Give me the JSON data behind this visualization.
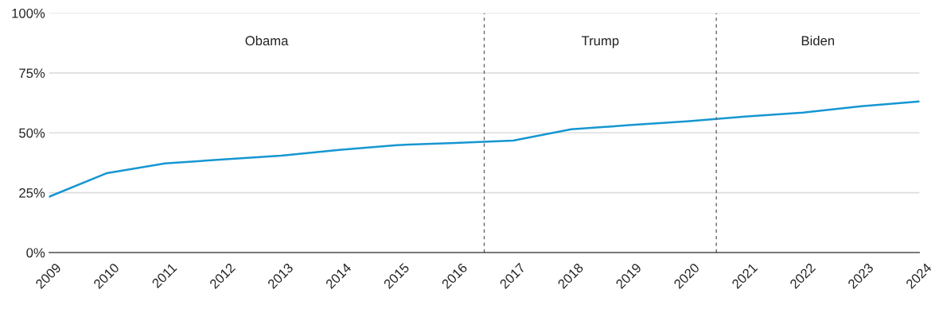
{
  "chart_data": {
    "type": "line",
    "x": [
      2009,
      2010,
      2011,
      2012,
      2013,
      2014,
      2015,
      2016,
      2017,
      2018,
      2019,
      2020,
      2021,
      2022,
      2023,
      2024
    ],
    "series": [
      {
        "color": "#1696d2",
        "values": [
          23.3,
          33.2,
          37.2,
          38.9,
          40.5,
          42.9,
          44.9,
          45.8,
          46.8,
          51.5,
          53.2,
          54.8,
          56.8,
          58.5,
          61.1,
          63.1
        ]
      }
    ],
    "xlim": [
      2009,
      2024
    ],
    "xticks": [
      2009,
      2010,
      2011,
      2012,
      2013,
      2014,
      2015,
      2016,
      2017,
      2018,
      2019,
      2020,
      2021,
      2022,
      2023,
      2024
    ],
    "ylim": [
      0,
      100
    ],
    "yticks": [
      {
        "value": 0,
        "label": "0%"
      },
      {
        "value": 25,
        "label": "25%"
      },
      {
        "value": 50,
        "label": "50%"
      },
      {
        "value": 75,
        "label": "75%"
      },
      {
        "value": 100,
        "label": "100%"
      }
    ],
    "grid": "y",
    "marker": "none",
    "line_style": "solid",
    "ref_lines": [
      {
        "axis": "x",
        "value": 2016.5,
        "color": "#666666",
        "line_style": "dashed"
      },
      {
        "axis": "x",
        "value": 2020.5,
        "color": "#666666",
        "line_style": "dashed"
      }
    ],
    "annotations": [
      "Obama",
      "Trump",
      "Biden"
    ]
  }
}
